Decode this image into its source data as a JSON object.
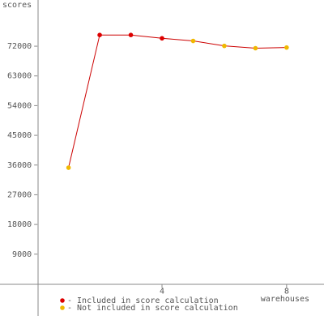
{
  "chart_data": {
    "type": "line",
    "y_label": "scores",
    "x_label": "warehouses",
    "x": [
      1,
      2,
      3,
      4,
      5,
      6,
      7,
      8
    ],
    "values": [
      35200,
      75400,
      75400,
      74400,
      73600,
      72100,
      71400,
      71600
    ],
    "included": [
      false,
      true,
      true,
      true,
      false,
      false,
      false,
      false
    ],
    "line_color": "#cc0000",
    "legend": [
      {
        "label": "- Included in score calculation",
        "color": "#dd0000",
        "included": true
      },
      {
        "label": "- Not included in score calculation",
        "color": "#f0b800",
        "included": false
      }
    ],
    "xlim": [
      -1.2,
      9.2
    ],
    "xticks": [
      4,
      8
    ],
    "ylim": [
      -9700,
      86000
    ],
    "yticks": [
      9000,
      18000,
      27000,
      36000,
      45000,
      54000,
      63000,
      72000
    ],
    "grid": false
  }
}
